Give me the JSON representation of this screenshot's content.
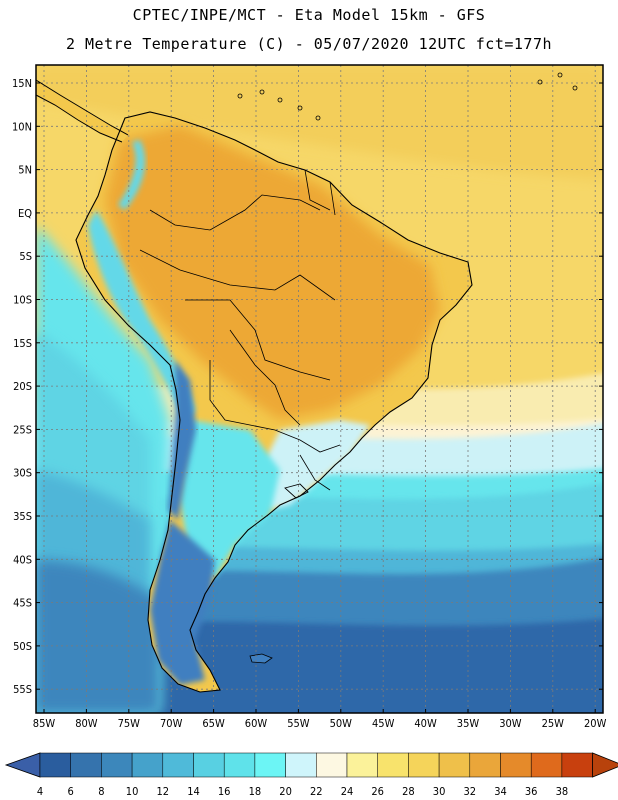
{
  "title_line1": "CPTEC/INPE/MCT -  Eta Model 15km - GFS",
  "title_line2": "2 Metre Temperature (C) - 05/07/2020 12UTC fct=177h",
  "lat_labels": [
    "15N",
    "10N",
    "5N",
    "EQ",
    "5S",
    "10S",
    "15S",
    "20S",
    "25S",
    "30S",
    "35S",
    "40S",
    "45S",
    "50S",
    "55S"
  ],
  "lon_labels": [
    "85W",
    "80W",
    "75W",
    "70W",
    "65W",
    "60W",
    "55W",
    "50W",
    "45W",
    "40W",
    "35W",
    "30W",
    "25W",
    "20W"
  ],
  "colorbar": {
    "labels": [
      "4",
      "6",
      "8",
      "10",
      "12",
      "14",
      "16",
      "18",
      "20",
      "22",
      "24",
      "26",
      "28",
      "30",
      "32",
      "34",
      "36",
      "38"
    ],
    "colors": [
      "#2a5d9e",
      "#3573ad",
      "#3c87bb",
      "#45a2cb",
      "#4fbad9",
      "#58d0e2",
      "#5fe2ea",
      "#6cf5f5",
      "#cff5fb",
      "#fdf8e2",
      "#fbf29a",
      "#f8e36c",
      "#f5d45a",
      "#efc04a",
      "#eaa63a",
      "#e58a2a",
      "#df6a1c",
      "#c8400e"
    ],
    "under_color": "#3a5fa8",
    "over_color": "#b8420c"
  },
  "map_colors": {
    "ocean_north": "#f6d768",
    "ocean_north_hot": "#f3ce5a",
    "ocean_warm_band": "#f9ecb0",
    "ocean_pale": "#fdf3d4",
    "ocean_cyan_light": "#cdf2f7",
    "ocean_cyan": "#66e5ec",
    "ocean_cyan_mid": "#5ed4e4",
    "ocean_blue_light": "#4fb6d8",
    "ocean_blue": "#3c86bd",
    "ocean_blue_deep": "#2e67a9",
    "land_hot": "#eda834",
    "land_warm": "#f3c84c",
    "land_andes": "#64d8e8",
    "land_patagonia": "#3f7fc0",
    "coastline": "#000000",
    "grid": "#7a7a7a"
  }
}
